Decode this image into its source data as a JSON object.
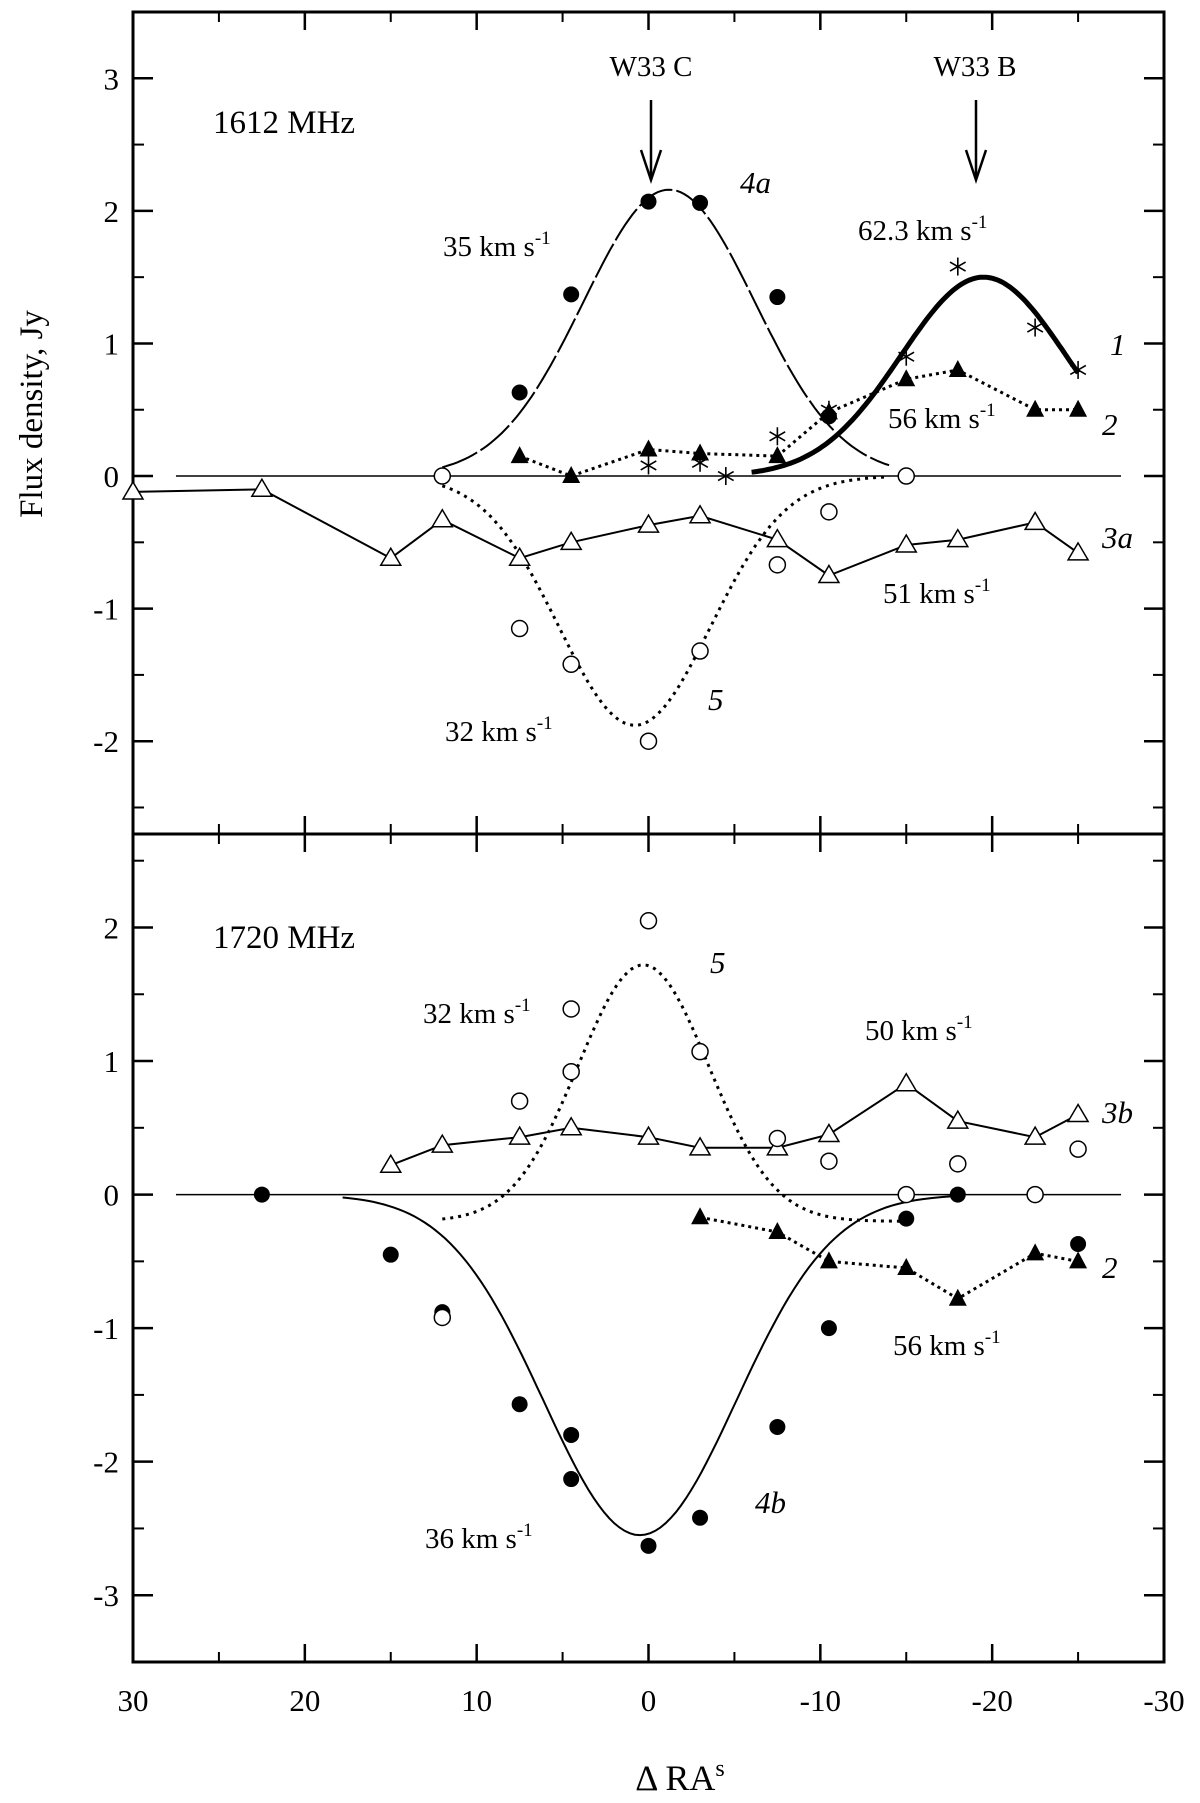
{
  "chart_data": [
    {
      "panel": "top",
      "type": "scatter",
      "title": "1612 MHz",
      "xlabel": "Δ RA",
      "xlabel_superscript": "s",
      "ylabel": "Flux density, Jy",
      "xlim": [
        30,
        -30
      ],
      "ylim": [
        -2.7,
        3.5
      ],
      "yticks": [
        -2,
        -1,
        0,
        1,
        2,
        3
      ],
      "ytick_labels": [
        "-2",
        "-1",
        "0",
        "1",
        "2",
        "3"
      ],
      "annotations": [
        {
          "text": "W33 C",
          "x": 0
        },
        {
          "text": "W33 B",
          "x": -19
        }
      ],
      "series": [
        {
          "id": "1",
          "label": "1",
          "velocity": "62.3 km s",
          "marker": "asterisk",
          "connect": "none",
          "points": [
            [
              -7.5,
              0.3
            ],
            [
              -10.5,
              0.5
            ],
            [
              -15,
              0.9
            ],
            [
              -18,
              1.58
            ],
            [
              -22.5,
              1.12
            ],
            [
              -25,
              0.8
            ],
            [
              -4.5,
              0.0
            ],
            [
              0,
              0.08
            ],
            [
              -3,
              0.1
            ]
          ],
          "fit": {
            "type": "gauss",
            "amp": 1.5,
            "center": -19.5,
            "sigma": 4.8,
            "base": 0,
            "xrange": [
              -6,
              -25
            ],
            "style": "thick"
          }
        },
        {
          "id": "2",
          "label": "2",
          "velocity": "56 km s",
          "marker": "filled-triangle",
          "connect": "dotted",
          "points": [
            [
              7.5,
              0.15
            ],
            [
              4.5,
              0.0
            ],
            [
              0,
              0.2
            ],
            [
              -3,
              0.17
            ],
            [
              -7.5,
              0.15
            ],
            [
              -10.5,
              0.48
            ],
            [
              -15,
              0.73
            ],
            [
              -18,
              0.8
            ],
            [
              -22.5,
              0.5
            ],
            [
              -25,
              0.5
            ]
          ]
        },
        {
          "id": "3a",
          "label": "3a",
          "velocity": "51 km s",
          "marker": "open-triangle",
          "connect": "solid",
          "points": [
            [
              30,
              -0.12
            ],
            [
              22.5,
              -0.1
            ],
            [
              15,
              -0.62
            ],
            [
              12,
              -0.33
            ],
            [
              7.5,
              -0.62
            ],
            [
              4.5,
              -0.5
            ],
            [
              0,
              -0.37
            ],
            [
              -3,
              -0.3
            ],
            [
              -7.5,
              -0.48
            ],
            [
              -10.5,
              -0.75
            ],
            [
              -15,
              -0.52
            ],
            [
              -18,
              -0.48
            ],
            [
              -22.5,
              -0.35
            ],
            [
              -25,
              -0.58
            ]
          ]
        },
        {
          "id": "4a",
          "label": "4a",
          "velocity": "35 km s",
          "marker": "filled-circle",
          "connect": "none",
          "points": [
            [
              7.5,
              0.63
            ],
            [
              4.5,
              1.37
            ],
            [
              0,
              2.07
            ],
            [
              -3,
              2.06
            ],
            [
              -7.5,
              1.35
            ],
            [
              -10.5,
              0.45
            ]
          ],
          "fit": {
            "type": "gauss",
            "amp": 2.16,
            "center": -1.2,
            "sigma": 5.0,
            "base": 0,
            "xrange": [
              12,
              -14
            ],
            "style": "longdash"
          }
        },
        {
          "id": "5",
          "label": "5",
          "velocity": "32 km s",
          "marker": "open-circle",
          "connect": "none",
          "points": [
            [
              12,
              0.0
            ],
            [
              7.5,
              -1.15
            ],
            [
              4.5,
              -1.42
            ],
            [
              0,
              -2.0
            ],
            [
              -3,
              -1.32
            ],
            [
              -7.5,
              -0.67
            ],
            [
              -10.5,
              -0.27
            ],
            [
              -15,
              0.0
            ]
          ],
          "fit": {
            "type": "gauss",
            "amp": -1.88,
            "center": 0.8,
            "sigma": 4.4,
            "base": 0,
            "xrange": [
              12,
              -14
            ],
            "style": "dotted"
          }
        }
      ]
    },
    {
      "panel": "bottom",
      "type": "scatter",
      "title": "1720 MHz",
      "xlim": [
        30,
        -30
      ],
      "ylim": [
        -3.5,
        2.7
      ],
      "yticks": [
        -3,
        -2,
        -1,
        0,
        1,
        2
      ],
      "ytick_labels": [
        "-3",
        "-2",
        "-1",
        "0",
        "1",
        "2"
      ],
      "xticks": [
        30,
        20,
        10,
        0,
        -10,
        -20,
        -30
      ],
      "xtick_labels": [
        "30",
        "20",
        "10",
        "0",
        "-10",
        "-20",
        "-30"
      ],
      "series": [
        {
          "id": "2",
          "label": "2",
          "velocity": "56 km s",
          "marker": "filled-triangle",
          "connect": "dotted",
          "points": [
            [
              -3,
              -0.17
            ],
            [
              -7.5,
              -0.28
            ],
            [
              -10.5,
              -0.5
            ],
            [
              -15,
              -0.55
            ],
            [
              -18,
              -0.78
            ],
            [
              -22.5,
              -0.44
            ],
            [
              -25,
              -0.5
            ]
          ]
        },
        {
          "id": "3b",
          "label": "3b",
          "velocity": "50 km s",
          "marker": "open-triangle",
          "connect": "solid",
          "points": [
            [
              15,
              0.22
            ],
            [
              12,
              0.37
            ],
            [
              7.5,
              0.43
            ],
            [
              4.5,
              0.5
            ],
            [
              0,
              0.43
            ],
            [
              -3,
              0.35
            ],
            [
              -7.5,
              0.35
            ],
            [
              -10.5,
              0.45
            ],
            [
              -15,
              0.83
            ],
            [
              -18,
              0.55
            ],
            [
              -22.5,
              0.43
            ],
            [
              -25,
              0.6
            ]
          ]
        },
        {
          "id": "4b",
          "label": "4b",
          "velocity": "36 km s",
          "marker": "filled-circle",
          "connect": "none",
          "points": [
            [
              22.5,
              0.0
            ],
            [
              15,
              -0.45
            ],
            [
              12,
              -0.88
            ],
            [
              7.5,
              -1.57
            ],
            [
              4.5,
              -1.8
            ],
            [
              4.5,
              -2.13
            ],
            [
              0,
              -2.63
            ],
            [
              -3,
              -2.42
            ],
            [
              -7.5,
              -1.74
            ],
            [
              -10.5,
              -1.0
            ],
            [
              -15,
              -0.18
            ],
            [
              -18,
              0.0
            ],
            [
              -25,
              -0.37
            ]
          ],
          "fit": {
            "type": "gauss",
            "amp": -2.55,
            "center": 0.5,
            "sigma": 5.6,
            "base": 0,
            "xrange": [
              17.8,
              -18
            ],
            "style": "solid"
          }
        },
        {
          "id": "5",
          "label": "5",
          "velocity": "32 km s",
          "marker": "open-circle",
          "connect": "none",
          "points": [
            [
              12,
              -0.92
            ],
            [
              7.5,
              0.7
            ],
            [
              4.5,
              1.39
            ],
            [
              4.5,
              0.92
            ],
            [
              0,
              2.05
            ],
            [
              -3,
              1.07
            ],
            [
              -7.5,
              0.42
            ],
            [
              -10.5,
              0.25
            ],
            [
              -15,
              0.0
            ],
            [
              -18,
              0.23
            ],
            [
              -22.5,
              0.0
            ],
            [
              -25,
              0.34
            ]
          ],
          "fit": {
            "type": "gauss",
            "amp": 1.92,
            "center": 0.3,
            "sigma": 3.8,
            "base": -0.2,
            "xrange": [
              12,
              -15
            ],
            "style": "dotted"
          }
        }
      ]
    }
  ]
}
